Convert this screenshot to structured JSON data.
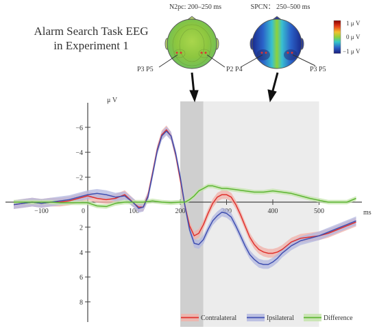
{
  "title_line1": "Alarm Search Task EEG",
  "title_line2": "in Experiment 1",
  "topomaps": [
    {
      "title": "N2pc:  200–250 ms",
      "left_electrodes": "P3 P5",
      "right_electrodes": "P2 P4"
    },
    {
      "title": "SPCN： 250–500 ms",
      "left_electrodes": "",
      "right_electrodes": "P3 P5"
    }
  ],
  "colorbar": {
    "max_label": "1 μ V",
    "mid_label": "0 μ V",
    "min_label": "−1 μ V"
  },
  "chart_data": {
    "type": "line",
    "title": "",
    "xlabel": "ms",
    "ylabel": "μ V",
    "y_inverted": true,
    "xlim": [
      -160,
      580
    ],
    "ylim": [
      -7.5,
      9.5
    ],
    "x_ticks": [
      -100,
      0,
      100,
      200,
      300,
      400,
      500
    ],
    "y_ticks": [
      -6,
      -4,
      -2,
      0,
      2,
      4,
      6,
      8
    ],
    "shaded_windows": [
      {
        "from": 200,
        "to": 250,
        "shade": "dark"
      },
      {
        "from": 250,
        "to": 500,
        "shade": "light"
      }
    ],
    "legend_position": "bottom-right",
    "series": [
      {
        "name": "Contralateral",
        "color": "#e0302c",
        "x": [
          -160,
          -140,
          -120,
          -100,
          -80,
          -60,
          -40,
          -20,
          0,
          20,
          40,
          60,
          80,
          100,
          110,
          120,
          130,
          140,
          150,
          160,
          170,
          180,
          190,
          200,
          210,
          220,
          230,
          240,
          250,
          260,
          270,
          280,
          290,
          300,
          310,
          320,
          330,
          340,
          350,
          360,
          370,
          380,
          390,
          400,
          410,
          420,
          430,
          440,
          460,
          480,
          500,
          520,
          540,
          560,
          580
        ],
        "y": [
          0.2,
          0.1,
          0,
          0.1,
          0,
          0,
          -0.1,
          -0.3,
          -0.5,
          -0.3,
          -0.2,
          -0.3,
          -0.6,
          0.1,
          0.4,
          0.4,
          -0.5,
          -2.3,
          -4.2,
          -5.4,
          -5.8,
          -5.3,
          -3.8,
          -1.8,
          0.3,
          1.9,
          2.7,
          2.5,
          1.8,
          0.9,
          0.1,
          -0.4,
          -0.6,
          -0.6,
          -0.4,
          0.2,
          1.0,
          1.9,
          2.8,
          3.4,
          3.8,
          4.0,
          4.1,
          4.1,
          4.0,
          3.8,
          3.5,
          3.2,
          2.9,
          2.8,
          2.7,
          2.5,
          2.2,
          1.9,
          1.6
        ]
      },
      {
        "name": "Ipsilateral",
        "color": "#3f4fb0",
        "x": [
          -160,
          -140,
          -120,
          -100,
          -80,
          -60,
          -40,
          -20,
          0,
          20,
          40,
          60,
          80,
          100,
          110,
          120,
          130,
          140,
          150,
          160,
          170,
          180,
          190,
          200,
          210,
          220,
          230,
          240,
          250,
          260,
          270,
          280,
          290,
          300,
          310,
          320,
          330,
          340,
          350,
          360,
          370,
          380,
          390,
          400,
          410,
          420,
          430,
          440,
          460,
          480,
          500,
          520,
          540,
          560,
          580
        ],
        "y": [
          0.2,
          0.1,
          0,
          0.1,
          0,
          -0.1,
          -0.2,
          -0.4,
          -0.6,
          -0.7,
          -0.6,
          -0.4,
          -0.5,
          0.1,
          0.5,
          0.4,
          -0.4,
          -2.2,
          -4.1,
          -5.3,
          -5.7,
          -5.3,
          -3.9,
          -2.0,
          0.3,
          2.2,
          3.3,
          3.4,
          3.0,
          2.2,
          1.5,
          1.1,
          0.8,
          0.9,
          1.2,
          1.9,
          2.7,
          3.5,
          4.2,
          4.6,
          4.9,
          5.0,
          5.0,
          4.8,
          4.5,
          4.1,
          3.8,
          3.5,
          3.1,
          2.9,
          2.7,
          2.4,
          2.1,
          1.8,
          1.5
        ]
      },
      {
        "name": "Difference",
        "color": "#5cb531",
        "x": [
          -160,
          -140,
          -120,
          -100,
          -80,
          -60,
          -40,
          -20,
          0,
          20,
          40,
          60,
          80,
          100,
          120,
          140,
          160,
          180,
          200,
          210,
          220,
          230,
          240,
          250,
          260,
          270,
          280,
          290,
          300,
          320,
          340,
          360,
          380,
          400,
          420,
          440,
          460,
          480,
          500,
          520,
          540,
          560,
          580
        ],
        "y": [
          0,
          0,
          0,
          0,
          0,
          0.05,
          0.05,
          0.05,
          0.05,
          0.3,
          0.35,
          0.1,
          0,
          0,
          0,
          -0.1,
          0,
          0.05,
          0,
          0,
          -0.2,
          -0.5,
          -0.9,
          -1.1,
          -1.3,
          -1.3,
          -1.2,
          -1.1,
          -1.1,
          -1.0,
          -0.9,
          -0.8,
          -0.8,
          -0.9,
          -0.8,
          -0.7,
          -0.5,
          -0.3,
          -0.15,
          0,
          0,
          0,
          -0.3
        ]
      }
    ]
  }
}
